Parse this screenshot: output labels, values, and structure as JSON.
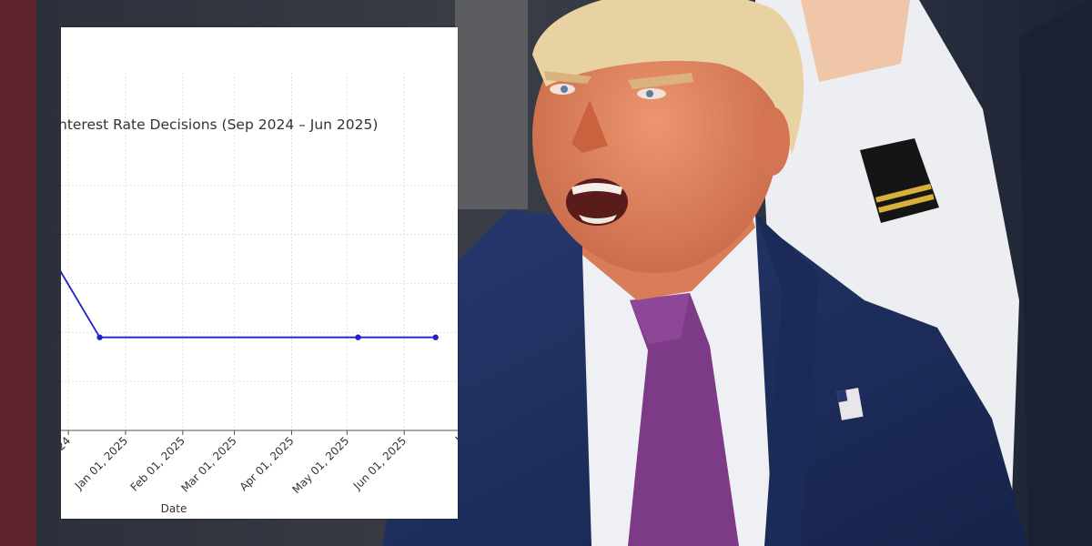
{
  "colors": {
    "line": "#1f22c8",
    "grid": "#d9d9d9",
    "axis": "#555555",
    "suit": "#1e2f63",
    "tie": "#7d3a86",
    "shirt": "#eef0f4",
    "skin": "#e0845f",
    "hair": "#e9d2a2"
  },
  "chart_data": {
    "type": "line",
    "title": "nterest Rate Decisions (Sep 2024 – Jun 2025)",
    "xlabel": "Date",
    "ylabel": "",
    "xlim": [
      "2024-11-27",
      "2025-06-30"
    ],
    "x_ticks": [
      {
        "date": "2024-12-01",
        "label": "24"
      },
      {
        "date": "2025-01-01",
        "label": "Jan 01, 2025"
      },
      {
        "date": "2025-02-01",
        "label": "Feb 01, 2025"
      },
      {
        "date": "2025-03-01",
        "label": "Mar 01, 2025"
      },
      {
        "date": "2025-04-01",
        "label": "Apr 01, 2025"
      },
      {
        "date": "2025-05-01",
        "label": "May 01, 2025"
      },
      {
        "date": "2025-06-01",
        "label": "Jun 01, 2025"
      },
      {
        "date": "2025-07-01",
        "label": "J"
      }
    ],
    "ylim": [
      0,
      6
    ],
    "y_grid": [
      1,
      2,
      3,
      4,
      5
    ],
    "grid": true,
    "series": [
      {
        "points": [
          {
            "x": "2024-11-07",
            "y": 4.5
          },
          {
            "x": "2024-12-18",
            "y": 1.9
          },
          {
            "x": "2025-05-07",
            "y": 1.9
          },
          {
            "x": "2025-06-18",
            "y": 1.9
          }
        ],
        "markers": [
          {
            "x": "2024-12-18",
            "y": 1.9
          },
          {
            "x": "2025-05-07",
            "y": 1.9
          },
          {
            "x": "2025-06-18",
            "y": 1.9
          }
        ]
      }
    ]
  }
}
